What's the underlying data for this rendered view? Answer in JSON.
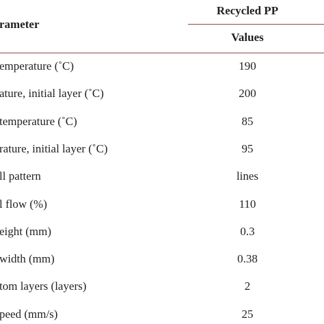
{
  "table": {
    "header": {
      "parameter": "rameter",
      "group": "Recycled PP",
      "values": "Values"
    },
    "rows": [
      [
        "emperature (˚C)",
        "190"
      ],
      [
        "ature, initial layer (˚C)",
        "200"
      ],
      [
        "temperature (˚C)",
        "85"
      ],
      [
        "rature, initial layer (˚C)",
        "95"
      ],
      [
        "ll pattern",
        "lines"
      ],
      [
        "l flow (%)",
        "110"
      ],
      [
        "eight (mm)",
        "0.3"
      ],
      [
        "width (mm)",
        "0.38"
      ],
      [
        "tom layers (layers)",
        "2"
      ],
      [
        "peed (mm/s)",
        "25"
      ]
    ]
  }
}
